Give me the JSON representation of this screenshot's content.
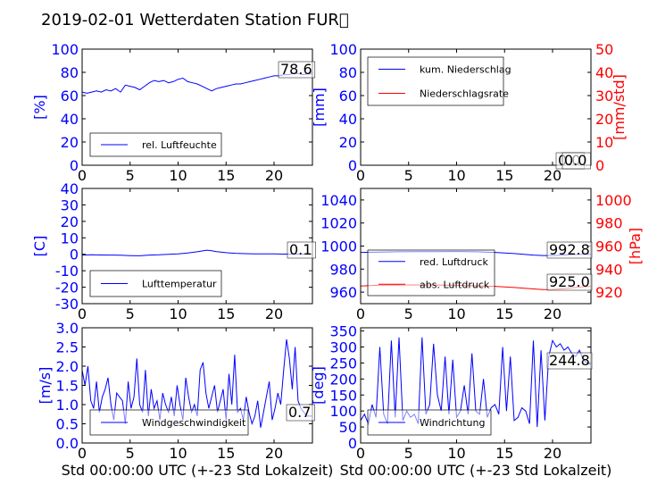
{
  "title": "2019-02-01 Wetterdaten Station FUR\u0000",
  "colors": {
    "primary": "#0000ff",
    "secondary": "#ff0000",
    "text": "#000000"
  },
  "chart_data": [
    {
      "type": "line",
      "panel": "humidity",
      "xlabel": "",
      "ylabel": "[%]",
      "xlim": [
        0,
        24
      ],
      "ylim": [
        0,
        100
      ],
      "xticks": [
        0,
        5,
        10,
        15,
        20
      ],
      "yticks": [
        0,
        20,
        40,
        60,
        80,
        100
      ],
      "legend": "lower-left",
      "series": [
        {
          "name": "rel. Luftfeuchte",
          "color": "#0000ff",
          "x": [
            0,
            0.5,
            1,
            1.5,
            2,
            2.5,
            3,
            3.5,
            4,
            4.5,
            5,
            5.5,
            6,
            6.5,
            7,
            7.5,
            8,
            8.5,
            9,
            9.5,
            10,
            10.5,
            11,
            11.5,
            12,
            12.5,
            13,
            13.5,
            14,
            14.5,
            15,
            15.5,
            16,
            16.5,
            17,
            17.5,
            18,
            18.5,
            19,
            19.5,
            20,
            20.5,
            21,
            21.5,
            22,
            22.5,
            23,
            23.5,
            24
          ],
          "y": [
            63,
            62,
            63,
            64,
            63,
            65,
            64,
            66,
            63,
            69,
            68,
            67,
            65,
            68,
            71,
            73,
            72,
            73,
            71,
            72,
            74,
            75,
            72,
            71,
            70,
            68,
            66,
            64,
            66,
            67,
            68,
            69,
            70,
            70,
            71,
            72,
            73,
            74,
            75,
            76,
            77,
            77,
            78,
            78,
            79,
            79,
            78,
            78.6,
            78.6
          ]
        }
      ],
      "value_labels": [
        {
          "text": "78.6",
          "y": 78.6
        }
      ]
    },
    {
      "type": "line",
      "panel": "precipitation",
      "xlabel": "",
      "ylabel": "[mm]",
      "ylabel_right": "[mm/std]",
      "xlim": [
        0,
        24
      ],
      "ylim": [
        0,
        100
      ],
      "ylim_right": [
        0,
        50
      ],
      "xticks": [
        0,
        5,
        10,
        15,
        20
      ],
      "yticks": [
        0,
        20,
        40,
        60,
        80,
        100
      ],
      "yticks_right": [
        0,
        10,
        20,
        30,
        40,
        50
      ],
      "legend": "top-left",
      "series": [
        {
          "name": "kum. Niederschlag",
          "color": "#0000ff",
          "axis": "left",
          "x": [
            0,
            24
          ],
          "y": [
            0,
            0
          ]
        },
        {
          "name": "Niederschlagsrate",
          "color": "#ff0000",
          "axis": "right",
          "x": [
            0,
            24
          ],
          "y": [
            0,
            0
          ]
        }
      ],
      "value_labels": [
        {
          "text": "0.0",
          "y": 0
        },
        {
          "text": "0.0",
          "y": 0
        }
      ]
    },
    {
      "type": "line",
      "panel": "temperature",
      "xlabel": "",
      "ylabel": "[C]",
      "xlim": [
        0,
        24
      ],
      "ylim": [
        -30,
        40
      ],
      "xticks": [
        0,
        5,
        10,
        15,
        20
      ],
      "yticks": [
        -30,
        -20,
        -10,
        0,
        10,
        20,
        30,
        40
      ],
      "legend": "lower-left",
      "series": [
        {
          "name": "Lufttemperatur",
          "color": "#0000ff",
          "x": [
            0,
            1,
            2,
            3,
            4,
            5,
            6,
            7,
            8,
            9,
            10,
            11,
            12,
            12.5,
            13,
            13.5,
            14,
            15,
            16,
            17,
            18,
            19,
            20,
            21,
            22,
            23,
            24
          ],
          "y": [
            -0.5,
            -0.3,
            -0.4,
            -0.5,
            -0.6,
            -0.8,
            -0.9,
            -0.5,
            -0.3,
            0,
            0.3,
            0.8,
            1.5,
            2.0,
            2.5,
            2.2,
            1.6,
            1.0,
            0.6,
            0.4,
            0.3,
            0.2,
            0.2,
            0.1,
            0.1,
            0.1,
            0.1
          ]
        }
      ],
      "value_labels": [
        {
          "text": "0.1",
          "y": 0.1
        }
      ]
    },
    {
      "type": "line",
      "panel": "pressure",
      "xlabel": "",
      "ylabel": "",
      "ylabel_right": "[hPa]",
      "xlim": [
        0,
        24
      ],
      "ylim": [
        950,
        1050
      ],
      "ylim_right": [
        910,
        1010
      ],
      "xticks": [
        0,
        5,
        10,
        15,
        20
      ],
      "yticks": [
        960,
        980,
        1000,
        1020,
        1040
      ],
      "yticks_right": [
        920,
        940,
        960,
        980,
        1000
      ],
      "legend": "lower-left",
      "series": [
        {
          "name": "red. Luftdruck",
          "color": "#0000ff",
          "axis": "left",
          "x": [
            0,
            2,
            4,
            6,
            8,
            10,
            12,
            14,
            16,
            18,
            19,
            20,
            21,
            22,
            23,
            24
          ],
          "y": [
            994.5,
            994.8,
            995,
            995.2,
            995.2,
            995.3,
            995,
            994.5,
            993.5,
            992.2,
            991.8,
            991.8,
            992.2,
            992.6,
            992.8,
            992.8
          ]
        },
        {
          "name": "abs. Luftdruck",
          "color": "#ff0000",
          "axis": "right",
          "x": [
            0,
            2,
            4,
            6,
            8,
            10,
            12,
            14,
            16,
            18,
            19,
            20,
            21,
            22,
            23,
            24
          ],
          "y": [
            925.3,
            926.1,
            926.2,
            926.3,
            926.2,
            926.0,
            925.5,
            925.0,
            924.0,
            922.8,
            922.2,
            922.3,
            922.9,
            923.8,
            924.5,
            925.0
          ]
        }
      ],
      "value_labels": [
        {
          "text": "992.8",
          "y": 992.8
        },
        {
          "text": "925.0",
          "y": 925.0
        }
      ]
    },
    {
      "type": "line",
      "panel": "windspeed",
      "xlabel": "Std 00:00:00 UTC (+-23 Std Lokalzeit)",
      "ylabel": "[m/s]",
      "xlim": [
        0,
        24
      ],
      "ylim": [
        0,
        3
      ],
      "xticks": [
        0,
        5,
        10,
        15,
        20
      ],
      "yticks": [
        0.0,
        0.5,
        1.0,
        1.5,
        2.0,
        2.5,
        3.0
      ],
      "legend": "lower-left",
      "series": [
        {
          "name": "Windgeschwindigkeit",
          "color": "#0000ff",
          "x": [
            0,
            0.3,
            0.6,
            0.9,
            1.2,
            1.5,
            1.8,
            2.1,
            2.4,
            2.7,
            3,
            3.3,
            3.6,
            3.9,
            4.2,
            4.5,
            4.8,
            5.1,
            5.4,
            5.7,
            6,
            6.3,
            6.6,
            6.9,
            7.2,
            7.5,
            7.8,
            8.1,
            8.4,
            8.7,
            9,
            9.3,
            9.6,
            9.9,
            10.2,
            10.5,
            10.8,
            11.1,
            11.4,
            11.7,
            12,
            12.3,
            12.6,
            12.9,
            13.2,
            13.5,
            13.8,
            14.1,
            14.4,
            14.7,
            15,
            15.3,
            15.6,
            15.9,
            16.2,
            16.5,
            16.8,
            17.1,
            17.4,
            17.7,
            18,
            18.3,
            18.6,
            18.9,
            19.2,
            19.5,
            19.8,
            20.1,
            20.4,
            20.7,
            21,
            21.3,
            21.6,
            21.9,
            22.2,
            22.5,
            22.8,
            23.1,
            23.4,
            23.7,
            24
          ],
          "y": [
            1.9,
            1.5,
            2.0,
            1.1,
            0.9,
            1.6,
            0.8,
            1.2,
            1.4,
            1.7,
            1.0,
            0.6,
            1.3,
            1.2,
            1.1,
            0.5,
            1.6,
            0.9,
            1.2,
            2.2,
            1.0,
            0.8,
            1.9,
            0.7,
            1.4,
            0.9,
            1.1,
            0.6,
            1.3,
            1.0,
            0.8,
            1.2,
            0.7,
            1.5,
            1.0,
            0.6,
            1.7,
            1.2,
            0.8,
            1.0,
            0.7,
            1.9,
            2.1,
            1.3,
            0.9,
            1.2,
            1.5,
            0.8,
            1.1,
            1.4,
            0.6,
            1.8,
            1.0,
            2.3,
            0.8,
            0.9,
            0.6,
            1.2,
            0.8,
            0.5,
            0.7,
            1.1,
            0.4,
            0.8,
            1.2,
            1.6,
            0.6,
            0.9,
            1.3,
            1.0,
            1.9,
            2.7,
            2.2,
            1.4,
            2.5,
            1.1,
            0.9,
            0.8,
            0.7,
            0.7,
            0.7
          ]
        }
      ],
      "value_labels": [
        {
          "text": "0.7",
          "y": 0.7
        }
      ]
    },
    {
      "type": "line",
      "panel": "winddirection",
      "xlabel": "Std 00:00:00 UTC (+-23 Std Lokalzeit)",
      "ylabel": "[deg]",
      "xlim": [
        0,
        24
      ],
      "ylim": [
        0,
        360
      ],
      "xticks": [
        0,
        5,
        10,
        15,
        20
      ],
      "yticks": [
        0,
        50,
        100,
        150,
        200,
        250,
        300,
        350
      ],
      "legend": "lower-left",
      "series": [
        {
          "name": "Windrichtung",
          "color": "#0000ff",
          "x": [
            0,
            0.4,
            0.8,
            1.2,
            1.6,
            2,
            2.4,
            2.8,
            3.2,
            3.6,
            4,
            4.4,
            4.8,
            5.2,
            5.6,
            6,
            6.4,
            6.8,
            7.2,
            7.6,
            8,
            8.4,
            8.8,
            9.2,
            9.6,
            10,
            10.4,
            10.8,
            11.2,
            11.6,
            12,
            12.4,
            12.8,
            13.2,
            13.6,
            14,
            14.4,
            14.8,
            15.2,
            15.6,
            16,
            16.4,
            16.8,
            17.2,
            17.6,
            18,
            18.4,
            18.8,
            19.2,
            19.6,
            20,
            20.4,
            20.8,
            21.2,
            21.6,
            22,
            22.4,
            22.8,
            23.2,
            23.6,
            24
          ],
          "y": [
            70,
            90,
            60,
            120,
            80,
            300,
            90,
            60,
            320,
            80,
            330,
            70,
            100,
            80,
            90,
            60,
            330,
            90,
            120,
            310,
            150,
            100,
            270,
            90,
            260,
            80,
            100,
            180,
            90,
            280,
            100,
            90,
            200,
            80,
            110,
            120,
            90,
            300,
            100,
            270,
            70,
            80,
            110,
            100,
            60,
            320,
            50,
            290,
            70,
            270,
            320,
            300,
            310,
            290,
            300,
            280,
            270,
            290,
            260,
            250,
            244.8
          ]
        }
      ],
      "value_labels": [
        {
          "text": "244.8",
          "y": 244.8
        }
      ]
    }
  ]
}
